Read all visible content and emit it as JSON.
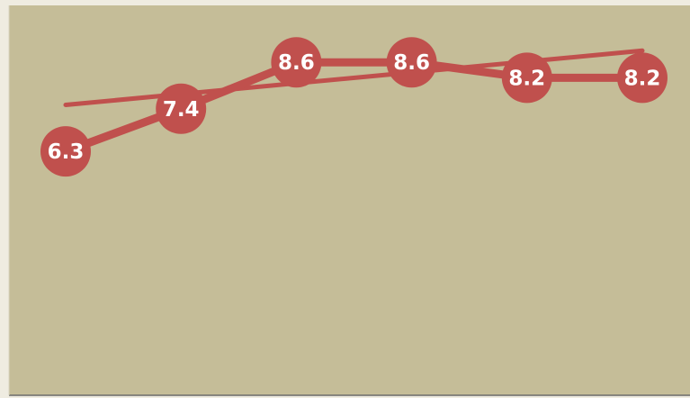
{
  "colors": {
    "page_background": "#efece1",
    "plot_background": "#c5bd98",
    "series_color": "#c0504d",
    "label_color": "#ffffff",
    "border_color": "#6b6b6b"
  },
  "chart_data": {
    "type": "line",
    "title": "",
    "xlabel": "",
    "ylabel": "",
    "grid": false,
    "legend": "none",
    "ylim": [
      0,
      10
    ],
    "x": [
      1,
      2,
      3,
      4,
      5,
      6
    ],
    "series": [
      {
        "values": [
          6.3,
          7.4,
          8.6,
          8.6,
          8.2,
          8.2
        ],
        "labels": [
          "6.3",
          "7.4",
          "8.6",
          "8.6",
          "8.2",
          "8.2"
        ]
      }
    ],
    "trendline": {
      "type": "linear",
      "start": 7.5,
      "end": 8.9
    }
  }
}
